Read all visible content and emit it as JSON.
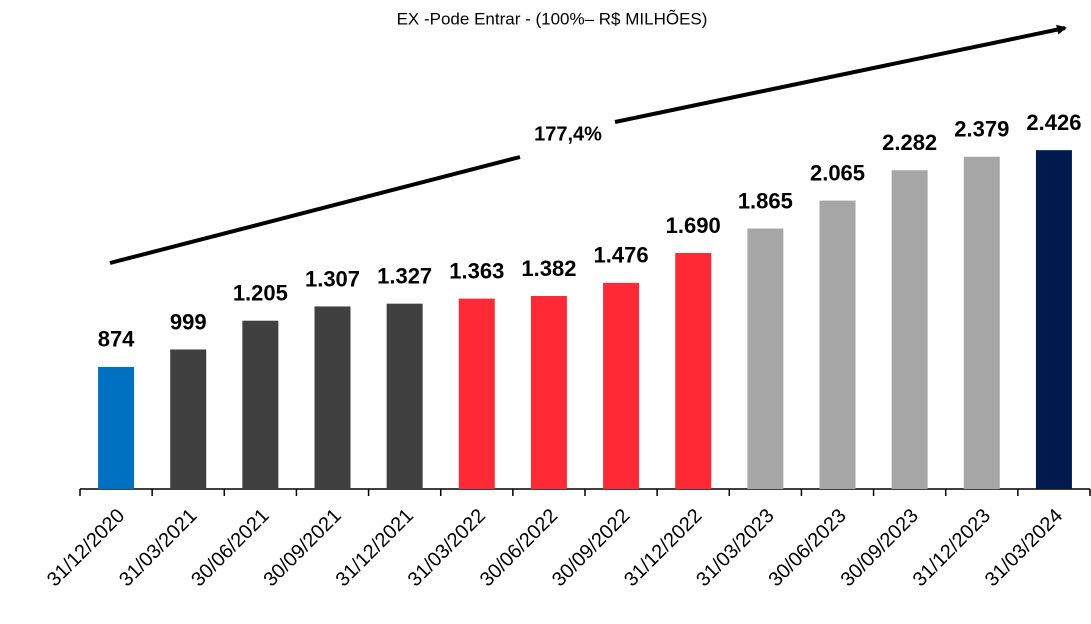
{
  "chart_data": {
    "type": "bar",
    "title": "EX -Pode Entrar - (100%– R$ MILHÕES)",
    "annotation": "177,4%",
    "categories": [
      "31/12/2020",
      "31/03/2021",
      "30/06/2021",
      "30/09/2021",
      "31/12/2021",
      "31/03/2022",
      "30/06/2022",
      "30/09/2022",
      "31/12/2022",
      "31/03/2023",
      "30/06/2023",
      "30/09/2023",
      "31/12/2023",
      "31/03/2024"
    ],
    "values": [
      874,
      999,
      1205,
      1307,
      1327,
      1363,
      1382,
      1476,
      1690,
      1865,
      2065,
      2282,
      2379,
      2426
    ],
    "value_labels": [
      "874",
      "999",
      "1.205",
      "1.307",
      "1.327",
      "1.363",
      "1.382",
      "1.476",
      "1.690",
      "1.865",
      "2.065",
      "2.282",
      "2.379",
      "2.426"
    ],
    "colors": [
      "#0070c0",
      "#404040",
      "#404040",
      "#404040",
      "#404040",
      "#ff2a36",
      "#ff2a36",
      "#ff2a36",
      "#ff2a36",
      "#a6a6a6",
      "#a6a6a6",
      "#a6a6a6",
      "#a6a6a6",
      "#001a4d"
    ],
    "ylim": [
      0,
      3000
    ]
  }
}
